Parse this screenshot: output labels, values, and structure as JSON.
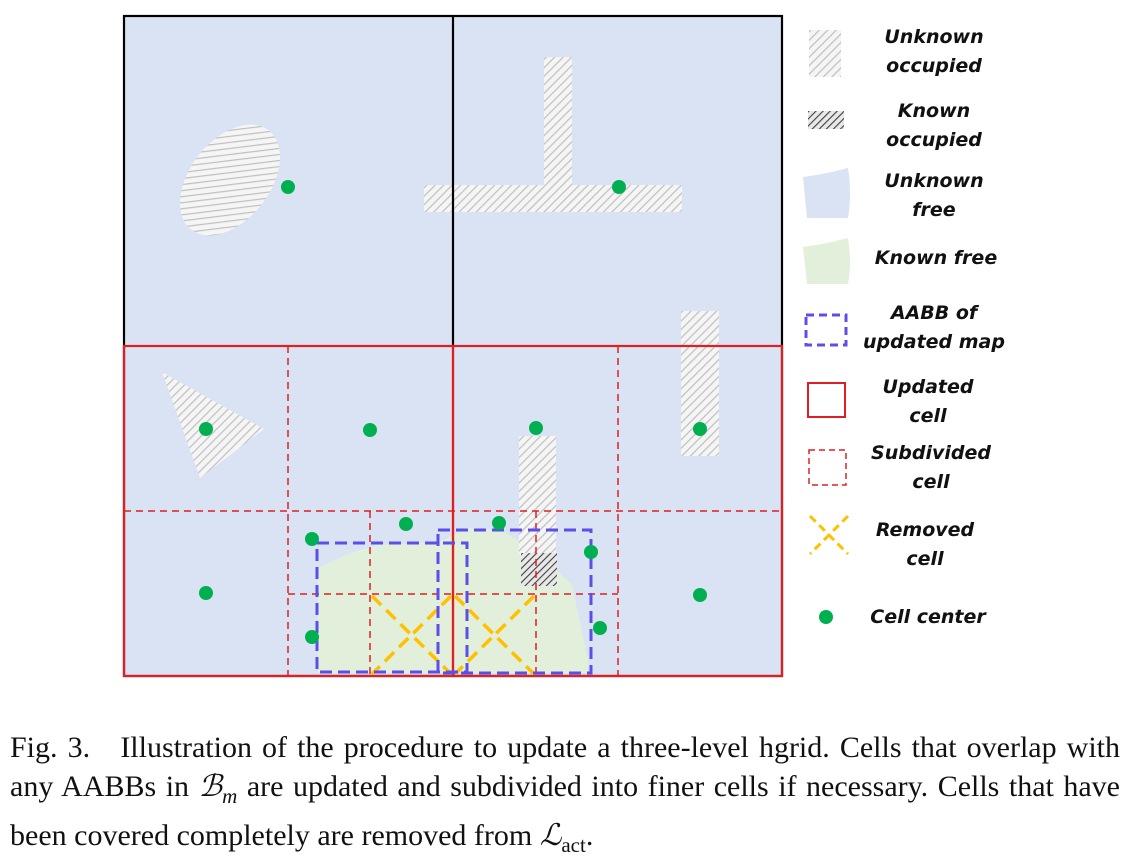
{
  "legend": [
    {
      "key": "unknown-occupied",
      "line1": "Unknown",
      "line2": "occupied"
    },
    {
      "key": "known-occupied",
      "line1": "Known",
      "line2": "occupied"
    },
    {
      "key": "unknown-free",
      "line1": "Unknown",
      "line2": "free"
    },
    {
      "key": "known-free",
      "line1": "Known free",
      "line2": ""
    },
    {
      "key": "aabb",
      "line1": "AABB of",
      "line2": "updated map"
    },
    {
      "key": "updated-cell",
      "line1": "Updated",
      "line2": "cell"
    },
    {
      "key": "subdivided-cell",
      "line1": "Subdivided",
      "line2": "cell"
    },
    {
      "key": "removed-cell",
      "line1": "Removed",
      "line2": "cell"
    },
    {
      "key": "cell-center",
      "line1": "Cell center",
      "line2": ""
    }
  ],
  "caption": {
    "fig_label": "Fig. 3.",
    "text_a": "Illustration of the procedure to update a three-level hgrid. Cells that overlap with any AABBs in ",
    "sym_b": "ℬ",
    "sym_b_sub": "m",
    "text_b": " are updated and subdivided into finer cells if necessary. Cells that have been covered completely are removed from ",
    "sym_l": "ℒ",
    "sym_l_sub": "act",
    "text_c": "."
  },
  "colors": {
    "unknown_free": "#dae3f3",
    "known_free": "#e2efda",
    "occupied_hatch": "#bfbfbf",
    "known_occupied_hatch": "#404040",
    "aabb": "#5b4fe8",
    "updated_cell": "#e02020",
    "removed": "#ffc000",
    "cell_center": "#00b050"
  }
}
